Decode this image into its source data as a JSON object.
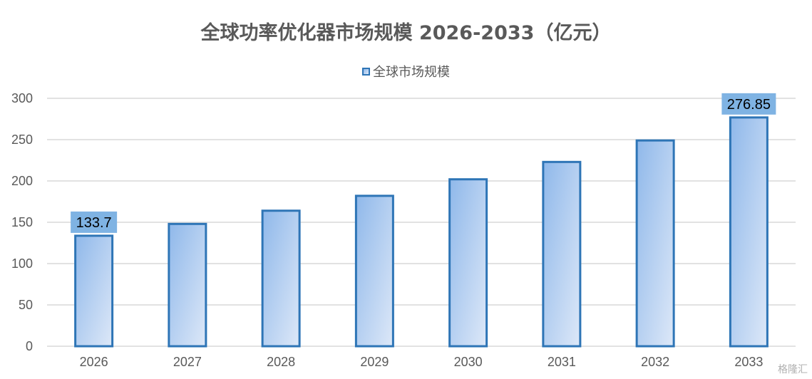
{
  "chart_data": {
    "type": "bar",
    "title": "全球功率优化器市场规模 2026-2033（亿元）",
    "categories": [
      "2026",
      "2027",
      "2028",
      "2029",
      "2030",
      "2031",
      "2032",
      "2033"
    ],
    "series": [
      {
        "name": "全球市场规模",
        "values": [
          133.7,
          148,
          164,
          182,
          202,
          223,
          249,
          276.85
        ]
      }
    ],
    "data_labels": [
      {
        "category": "2026",
        "text": "133.7"
      },
      {
        "category": "2033",
        "text": "276.85"
      }
    ],
    "ylim": [
      0,
      300
    ],
    "yticks": [
      0,
      50,
      100,
      150,
      200,
      250,
      300
    ],
    "grid": true,
    "legend_position": "top",
    "colors": {
      "bar_border": "#2e75b6",
      "bar_fill_start": "#8fb8ea",
      "bar_fill_end": "#dde8f8",
      "label_bg": "#7fb3e3",
      "grid": "#d9d9d9"
    }
  },
  "watermark": "格隆汇"
}
